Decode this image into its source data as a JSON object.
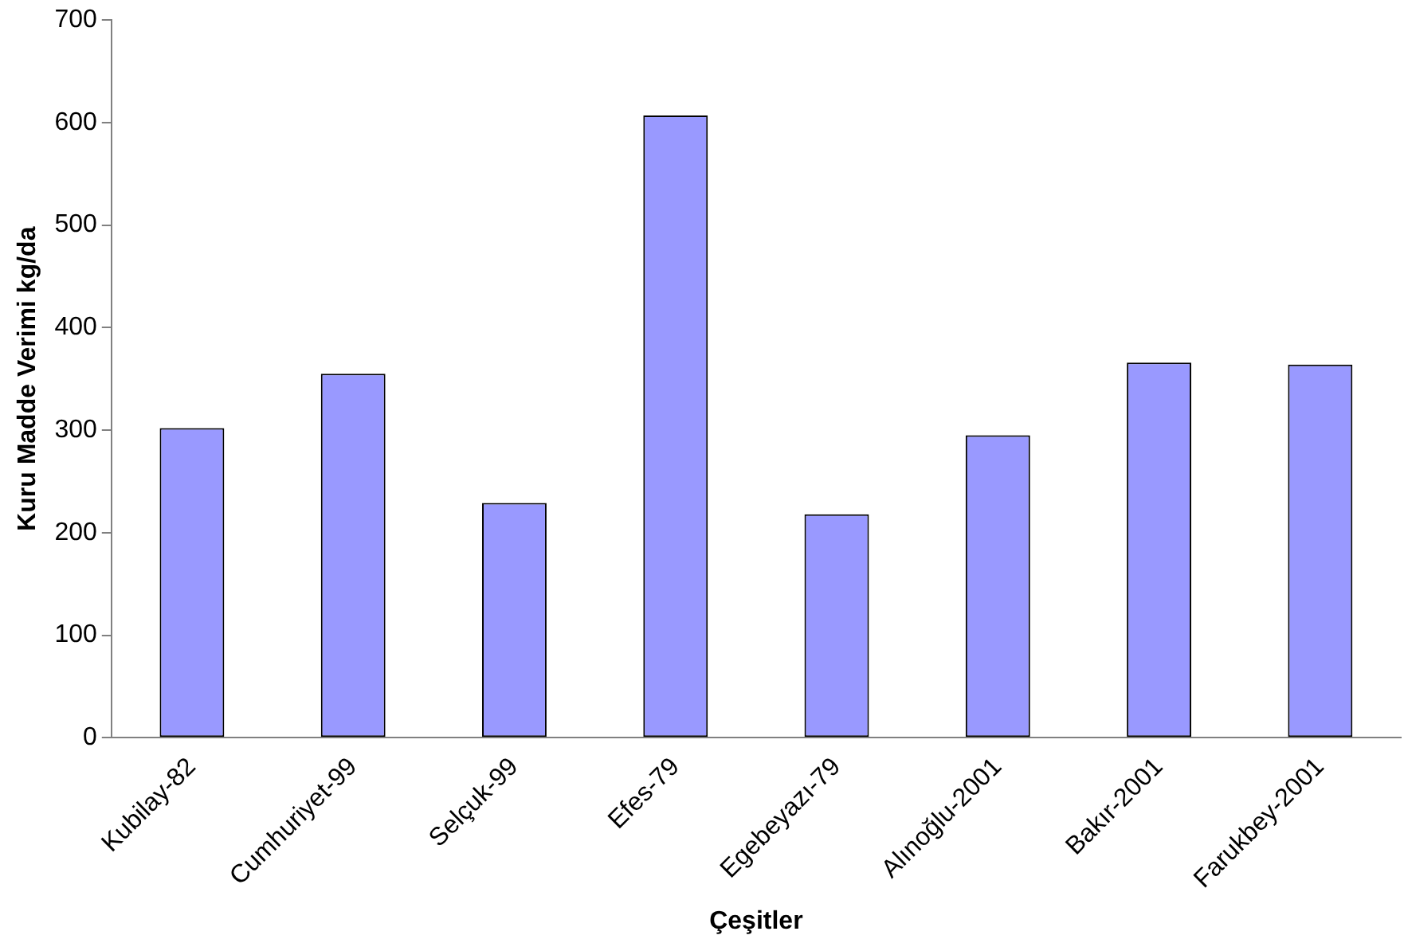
{
  "chart_data": {
    "type": "bar",
    "xlabel": "Çeşitler",
    "ylabel": "Kuru Madde Verimi kg/da",
    "categories": [
      "Kubilay-82",
      "Cumhuriyet-99",
      "Selçuk-99",
      "Efes-79",
      "Egebeyazı-79",
      "Alınoğlu-2001",
      "Bakır-2001",
      "Farukbey-2001"
    ],
    "values": [
      302,
      355,
      229,
      607,
      218,
      295,
      366,
      364
    ],
    "color": "#9999ff",
    "ylim": [
      0,
      700
    ],
    "yticks": [
      0,
      100,
      200,
      300,
      400,
      500,
      600,
      700
    ],
    "grid": false,
    "legend": false
  }
}
